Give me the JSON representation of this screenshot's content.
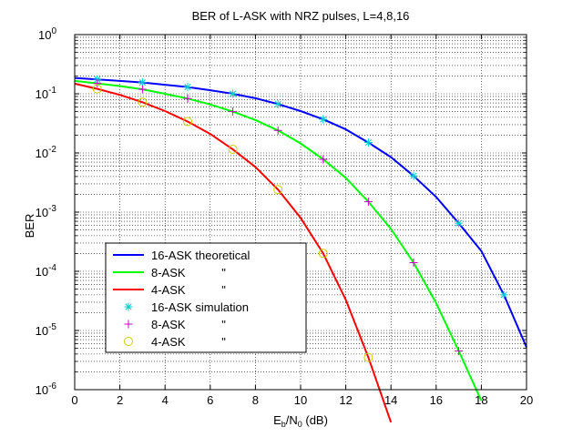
{
  "chart_data": {
    "type": "line",
    "title": "BER of L-ASK with NRZ pulses, L=4,8,16",
    "xlabel": {
      "base": "E",
      "sub1": "b",
      "mid": "/N",
      "sub2": "0",
      "tail": " (dB)"
    },
    "ylabel": "BER",
    "x_scale": "linear",
    "y_scale": "log",
    "xlim": [
      0,
      20
    ],
    "ylim": [
      1e-06,
      1
    ],
    "x_ticks": [
      0,
      2,
      4,
      6,
      8,
      10,
      12,
      14,
      16,
      18,
      20
    ],
    "y_ticks": [
      {
        "value": 1e-06,
        "base": "10",
        "exp": "-6"
      },
      {
        "value": 1e-05,
        "base": "10",
        "exp": "-5"
      },
      {
        "value": 0.0001,
        "base": "10",
        "exp": "-4"
      },
      {
        "value": 0.001,
        "base": "10",
        "exp": "-3"
      },
      {
        "value": 0.01,
        "base": "10",
        "exp": "-2"
      },
      {
        "value": 0.1,
        "base": "10",
        "exp": "-1"
      },
      {
        "value": 1,
        "base": "10",
        "exp": "0"
      }
    ],
    "grid": true,
    "legend_position": "bottom-left",
    "series": [
      {
        "name": "16-ASK theoretical",
        "kind": "line",
        "color": "#0000ff",
        "x": [
          0,
          1,
          2,
          3,
          4,
          5,
          6,
          7,
          8,
          9,
          10,
          11,
          12,
          13,
          14,
          15,
          16,
          17,
          18,
          19,
          20
        ],
        "y": [
          0.185,
          0.175,
          0.165,
          0.155,
          0.142,
          0.13,
          0.115,
          0.1,
          0.084,
          0.067,
          0.051,
          0.037,
          0.025,
          0.015,
          0.0085,
          0.0041,
          0.0018,
          0.00065,
          0.00022,
          4e-05,
          5.2e-06
        ]
      },
      {
        "name": "8-ASK           \"",
        "kind": "line",
        "color": "#00ff00",
        "x": [
          0,
          1,
          2,
          3,
          4,
          5,
          6,
          7,
          8,
          9,
          10,
          11,
          12,
          13,
          14,
          15,
          16,
          17,
          18
        ],
        "y": [
          0.165,
          0.15,
          0.135,
          0.119,
          0.1,
          0.083,
          0.066,
          0.05,
          0.036,
          0.024,
          0.0145,
          0.0078,
          0.0038,
          0.0015,
          0.00052,
          0.00014,
          2.9e-05,
          4.5e-06,
          6.5e-07
        ]
      },
      {
        "name": "4-ASK           \"",
        "kind": "line",
        "color": "#ff0000",
        "x": [
          0,
          1,
          2,
          3,
          4,
          5,
          6,
          7,
          8,
          9,
          10,
          11,
          12,
          13,
          14
        ],
        "y": [
          0.148,
          0.121,
          0.096,
          0.072,
          0.051,
          0.034,
          0.021,
          0.0115,
          0.0058,
          0.0024,
          0.0008,
          0.0002,
          3.3e-05,
          3.5e-06,
          2.8e-07
        ]
      },
      {
        "name": "16-ASK simulation",
        "kind": "marker",
        "marker": "asterisk",
        "color": "#00cccc",
        "x": [
          1,
          3,
          5,
          7,
          9,
          11,
          13,
          15,
          17,
          19
        ],
        "y": [
          0.175,
          0.155,
          0.13,
          0.1,
          0.067,
          0.037,
          0.015,
          0.0041,
          0.00065,
          4e-05
        ]
      },
      {
        "name": "8-ASK           \"",
        "kind": "marker",
        "marker": "plus",
        "color": "#cc00cc",
        "x": [
          1,
          3,
          5,
          7,
          9,
          11,
          13,
          15,
          17
        ],
        "y": [
          0.15,
          0.119,
          0.083,
          0.05,
          0.024,
          0.0078,
          0.0015,
          0.00014,
          4.5e-06
        ]
      },
      {
        "name": "4-ASK           \"",
        "kind": "marker",
        "marker": "circle",
        "color": "#cccc00",
        "x": [
          1,
          3,
          5,
          7,
          9,
          11,
          13
        ],
        "y": [
          0.121,
          0.072,
          0.034,
          0.0115,
          0.0024,
          0.0002,
          3.5e-06
        ]
      }
    ]
  }
}
